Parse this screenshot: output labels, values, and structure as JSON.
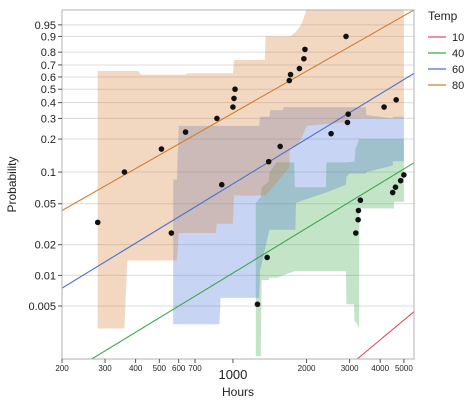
{
  "chart_data": {
    "type": "scatter",
    "title": "",
    "xlabel": "Hours",
    "ylabel": "Probability",
    "x_scale": "log",
    "y_scale": "probability",
    "xlim": [
      200,
      5500
    ],
    "ylim": [
      0.0015,
      0.985
    ],
    "x_ticks": [
      {
        "value": 200,
        "label": "200"
      },
      {
        "value": 300,
        "label": "300"
      },
      {
        "value": 400,
        "label": "400"
      },
      {
        "value": 500,
        "label": "500"
      },
      {
        "value": 600,
        "label": "600"
      },
      {
        "value": 700,
        "label": "700"
      },
      {
        "value": 1000,
        "label": "1000"
      },
      {
        "value": 2000,
        "label": "2000"
      },
      {
        "value": 3000,
        "label": "3000"
      },
      {
        "value": 4000,
        "label": "4000"
      },
      {
        "value": 5000,
        "label": "5000"
      }
    ],
    "y_ticks": [
      {
        "value": 0.95,
        "label": "0.95"
      },
      {
        "value": 0.9,
        "label": "0.9"
      },
      {
        "value": 0.8,
        "label": "0.8"
      },
      {
        "value": 0.7,
        "label": "0.7"
      },
      {
        "value": 0.6,
        "label": "0.6"
      },
      {
        "value": 0.5,
        "label": "0.5"
      },
      {
        "value": 0.4,
        "label": "0.4"
      },
      {
        "value": 0.3,
        "label": "0.3"
      },
      {
        "value": 0.2,
        "label": "0.2"
      },
      {
        "value": 0.1,
        "label": "0.1"
      },
      {
        "value": 0.05,
        "label": "0.05"
      },
      {
        "value": 0.02,
        "label": "0.02"
      },
      {
        "value": 0.01,
        "label": "0.01"
      },
      {
        "value": 0.005,
        "label": "0.005"
      }
    ],
    "grid": true,
    "legend": {
      "title": "Temp",
      "position": "right"
    },
    "series": [
      {
        "name": "10",
        "color": "#d9535e",
        "fit_line": [
          [
            3000,
            0.0013
          ],
          [
            5500,
            0.0044
          ]
        ],
        "points": [],
        "band": []
      },
      {
        "name": "40",
        "color": "#3aa64a",
        "fit_line": [
          [
            240,
            0.0013
          ],
          [
            5500,
            0.122
          ]
        ],
        "points": [
          [
            1260,
            0.0052
          ],
          [
            1380,
            0.015
          ],
          [
            3180,
            0.026
          ],
          [
            3250,
            0.035
          ],
          [
            3260,
            0.043
          ],
          [
            3320,
            0.054
          ],
          [
            4500,
            0.064
          ],
          [
            4620,
            0.072
          ],
          [
            4850,
            0.083
          ],
          [
            5000,
            0.094
          ]
        ],
        "band": [
          [
            1240,
            0.0016,
            0.051
          ],
          [
            1300,
            0.0016,
            0.058
          ],
          [
            1310,
            0.009,
            0.072
          ],
          [
            1400,
            0.009,
            0.081
          ],
          [
            1410,
            0.0095,
            0.099
          ],
          [
            1510,
            0.0095,
            0.123
          ],
          [
            1780,
            0.011,
            0.123
          ],
          [
            1790,
            0.011,
            0.072
          ],
          [
            2400,
            0.011,
            0.072
          ],
          [
            2410,
            0.011,
            0.123
          ],
          [
            2900,
            0.011,
            0.123
          ],
          [
            2910,
            0.0052,
            0.123
          ],
          [
            3130,
            0.0052,
            0.125
          ],
          [
            3140,
            0.0035,
            0.125
          ],
          [
            3170,
            0.0035,
            0.165
          ],
          [
            3180,
            0.0035,
            0.165
          ],
          [
            3280,
            0.003,
            0.2
          ],
          [
            3290,
            0.045,
            0.2
          ],
          [
            3800,
            0.045,
            0.2
          ],
          [
            3810,
            0.045,
            0.2
          ],
          [
            4550,
            0.045,
            0.2
          ],
          [
            4560,
            0.052,
            0.2
          ],
          [
            5000,
            0.052,
            0.2
          ]
        ]
      },
      {
        "name": "60",
        "color": "#4a6fd8",
        "fit_line": [
          [
            200,
            0.0075
          ],
          [
            5500,
            0.63
          ]
        ],
        "points": [
          [
            560,
            0.026
          ],
          [
            900,
            0.076
          ],
          [
            1400,
            0.125
          ],
          [
            1560,
            0.172
          ],
          [
            2520,
            0.223
          ],
          [
            2940,
            0.278
          ],
          [
            2960,
            0.325
          ]
        ],
        "band": [
          [
            570,
            0.0033,
            0.085
          ],
          [
            590,
            0.0033,
            0.085
          ],
          [
            600,
            0.0033,
            0.26
          ],
          [
            880,
            0.0033,
            0.26
          ],
          [
            890,
            0.006,
            0.26
          ],
          [
            1000,
            0.006,
            0.26
          ],
          [
            1010,
            0.006,
            0.26
          ],
          [
            1280,
            0.006,
            0.26
          ],
          [
            1290,
            0.011,
            0.31
          ],
          [
            1410,
            0.028,
            0.31
          ],
          [
            1420,
            0.028,
            0.35
          ],
          [
            1600,
            0.028,
            0.35
          ],
          [
            1610,
            0.028,
            0.37
          ],
          [
            1800,
            0.028,
            0.37
          ],
          [
            1810,
            0.051,
            0.37
          ],
          [
            2400,
            0.064,
            0.37
          ],
          [
            2410,
            0.064,
            0.37
          ],
          [
            2900,
            0.076,
            0.37
          ],
          [
            2910,
            0.09,
            0.37
          ],
          [
            3000,
            0.097,
            0.37
          ],
          [
            3010,
            0.097,
            0.37
          ],
          [
            3500,
            0.097,
            0.37
          ],
          [
            3510,
            0.1,
            0.32
          ],
          [
            4500,
            0.115,
            0.3
          ],
          [
            4510,
            0.126,
            0.31
          ],
          [
            5000,
            0.126,
            0.31
          ]
        ]
      },
      {
        "name": "80",
        "color": "#d57d2e",
        "fit_line": [
          [
            200,
            0.043
          ],
          [
            5500,
            0.985
          ]
        ],
        "points": [
          [
            280,
            0.033
          ],
          [
            360,
            0.1
          ],
          [
            510,
            0.163
          ],
          [
            640,
            0.23
          ],
          [
            860,
            0.3
          ],
          [
            1000,
            0.37
          ],
          [
            1010,
            0.43
          ],
          [
            1020,
            0.5
          ],
          [
            1700,
            0.57
          ],
          [
            1720,
            0.62
          ],
          [
            1870,
            0.67
          ],
          [
            1950,
            0.75
          ],
          [
            1970,
            0.82
          ],
          [
            2900,
            0.9
          ],
          [
            4150,
            0.37
          ],
          [
            4650,
            0.42
          ]
        ],
        "band": [
          [
            280,
            0.003,
            0.65
          ],
          [
            360,
            0.003,
            0.65
          ],
          [
            370,
            0.014,
            0.65
          ],
          [
            410,
            0.014,
            0.65
          ],
          [
            420,
            0.014,
            0.62
          ],
          [
            500,
            0.014,
            0.62
          ],
          [
            510,
            0.014,
            0.62
          ],
          [
            590,
            0.014,
            0.62
          ],
          [
            600,
            0.026,
            0.62
          ],
          [
            640,
            0.026,
            0.62
          ],
          [
            650,
            0.026,
            0.63
          ],
          [
            850,
            0.026,
            0.63
          ],
          [
            860,
            0.032,
            0.63
          ],
          [
            1000,
            0.032,
            0.63
          ],
          [
            1010,
            0.06,
            0.74
          ],
          [
            1350,
            0.06,
            0.74
          ],
          [
            1360,
            0.06,
            0.9
          ],
          [
            1700,
            0.11,
            0.9
          ],
          [
            1710,
            0.17,
            0.9
          ],
          [
            1800,
            0.17,
            0.92
          ],
          [
            1900,
            0.2,
            0.95
          ],
          [
            2000,
            0.26,
            0.985
          ],
          [
            2890,
            0.28,
            0.985
          ],
          [
            2900,
            0.3,
            0.985
          ],
          [
            3400,
            0.3,
            0.985
          ],
          [
            3410,
            0.3,
            0.985
          ],
          [
            4100,
            0.3,
            0.985
          ],
          [
            4110,
            0.3,
            0.985
          ],
          [
            5000,
            0.3,
            0.985
          ]
        ]
      }
    ]
  }
}
